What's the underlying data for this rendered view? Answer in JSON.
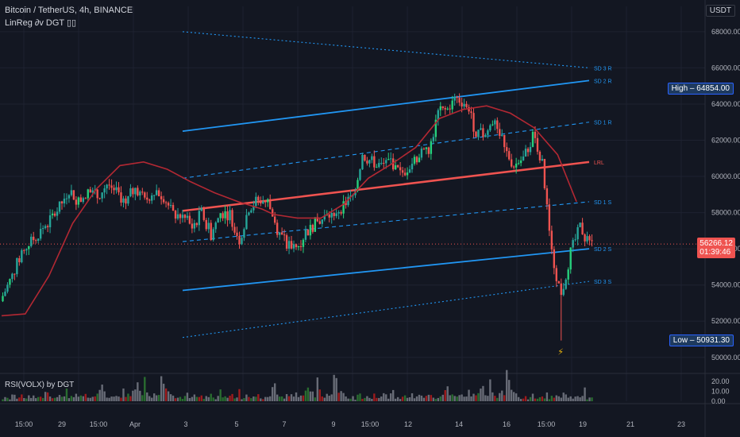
{
  "header": {
    "symbol": "Bitcoin / TetherUS, 4h, BINANCE",
    "indicator": "LinReg ∂v DGT ▯▯",
    "currency": "USDT"
  },
  "volume_panel": {
    "title": "RSI(VOLX) by DGT"
  },
  "price_axis": {
    "ticks": [
      "68000.00",
      "66000.00",
      "64000.00",
      "62000.00",
      "60000.00",
      "58000.00",
      "56000.00",
      "54000.00",
      "52000.00",
      "50000.00"
    ],
    "tick_values": [
      68000,
      66000,
      64000,
      62000,
      60000,
      58000,
      56000,
      54000,
      52000,
      50000
    ],
    "range": [
      49200,
      69400
    ]
  },
  "volume_axis": {
    "ticks": [
      "20.00",
      "10.00",
      "0.00"
    ],
    "tick_values": [
      20,
      10,
      0
    ],
    "range": [
      0,
      28
    ]
  },
  "time_axis": {
    "labels": [
      "15:00",
      "29",
      "15:00",
      "Apr",
      "3",
      "5",
      "7",
      "9",
      "15:00",
      "12",
      "14",
      "16",
      "15:00",
      "19",
      "21",
      "23"
    ]
  },
  "high_tag": {
    "label": "High",
    "value": "64854.00",
    "price": 64854
  },
  "low_tag": {
    "label": "Low",
    "value": "50931.30",
    "price": 50931
  },
  "current_price": {
    "value": "56266.12",
    "countdown": "01:39:46",
    "price": 56266
  },
  "regression_bands": {
    "labels": [
      "SD 3 R",
      "SD 2 R",
      "SD 1 R",
      "LRL",
      "SD 1 S",
      "SD 2 S",
      "SD 3 S"
    ],
    "start": [
      68000,
      62500,
      59900,
      58100,
      56400,
      53700,
      51100
    ],
    "end": [
      66000,
      65300,
      63000,
      60800,
      58600,
      56000,
      54200
    ],
    "colors": [
      "#2196f3",
      "#2196f3",
      "#2196f3",
      "#ef5350",
      "#2196f3",
      "#2196f3",
      "#2196f3"
    ],
    "styles": [
      "dotted",
      "solid",
      "dashed",
      "solid",
      "dashed",
      "solid",
      "dotted"
    ]
  },
  "colors": {
    "background": "#131722",
    "up": "#26a69a",
    "down": "#ef5350",
    "up_bright": "#26d07c",
    "volume_up": "#2e7d32",
    "volume_down": "#b71c1c",
    "volume_neutral": "#787b86",
    "ma": "#b22833",
    "grid": "#1e2230",
    "text_muted": "#787b86",
    "lightning": "#f0b90b"
  },
  "chart_data": {
    "type": "candlestick",
    "title": "Bitcoin / TetherUS, 4h, BINANCE",
    "unit": "USDT",
    "close_path_keypoints": [
      [
        0,
        53400
      ],
      [
        4,
        54500
      ],
      [
        8,
        55800
      ],
      [
        12,
        56400
      ],
      [
        16,
        57000
      ],
      [
        20,
        57600
      ],
      [
        24,
        58300
      ],
      [
        28,
        59300
      ],
      [
        32,
        58600
      ],
      [
        36,
        59200
      ],
      [
        40,
        58900
      ],
      [
        44,
        59600
      ],
      [
        48,
        59200
      ],
      [
        52,
        58500
      ],
      [
        56,
        59500
      ],
      [
        60,
        58600
      ],
      [
        64,
        59300
      ],
      [
        68,
        58900
      ],
      [
        72,
        57900
      ],
      [
        76,
        57800
      ],
      [
        80,
        57200
      ],
      [
        84,
        58000
      ],
      [
        88,
        56800
      ],
      [
        92,
        58000
      ],
      [
        96,
        57900
      ],
      [
        100,
        56500
      ],
      [
        104,
        58300
      ],
      [
        108,
        58700
      ],
      [
        112,
        58600
      ],
      [
        116,
        57100
      ],
      [
        120,
        56200
      ],
      [
        124,
        56000
      ],
      [
        128,
        56900
      ],
      [
        132,
        57400
      ],
      [
        136,
        57700
      ],
      [
        140,
        58000
      ],
      [
        144,
        58400
      ],
      [
        148,
        58900
      ],
      [
        152,
        61200
      ],
      [
        156,
        60800
      ],
      [
        160,
        60600
      ],
      [
        164,
        60900
      ],
      [
        168,
        60100
      ],
      [
        172,
        60600
      ],
      [
        176,
        61200
      ],
      [
        180,
        61300
      ],
      [
        184,
        63500
      ],
      [
        188,
        63700
      ],
      [
        192,
        64300
      ],
      [
        196,
        64000
      ],
      [
        200,
        62400
      ],
      [
        204,
        62300
      ],
      [
        208,
        63300
      ],
      [
        212,
        61500
      ],
      [
        216,
        60600
      ],
      [
        220,
        61000
      ],
      [
        224,
        62200
      ],
      [
        228,
        60700
      ],
      [
        232,
        55700
      ],
      [
        236,
        53400
      ],
      [
        240,
        55800
      ],
      [
        244,
        57200
      ],
      [
        248,
        56300
      ]
    ],
    "moving_average": [
      [
        0,
        52300
      ],
      [
        10,
        52400
      ],
      [
        20,
        54500
      ],
      [
        30,
        57400
      ],
      [
        40,
        59300
      ],
      [
        50,
        60600
      ],
      [
        60,
        60800
      ],
      [
        70,
        60400
      ],
      [
        80,
        59700
      ],
      [
        90,
        59100
      ],
      [
        100,
        58600
      ],
      [
        110,
        58200
      ],
      [
        115,
        57900
      ],
      [
        125,
        57700
      ],
      [
        135,
        57700
      ],
      [
        145,
        58500
      ],
      [
        155,
        59900
      ],
      [
        165,
        60700
      ],
      [
        175,
        61600
      ],
      [
        185,
        63200
      ],
      [
        195,
        63700
      ],
      [
        205,
        63900
      ],
      [
        215,
        63500
      ],
      [
        225,
        62700
      ],
      [
        235,
        61200
      ],
      [
        243,
        58600
      ]
    ],
    "volume_sample": [
      3,
      4,
      5,
      2,
      6,
      8,
      3,
      4,
      6,
      5,
      4,
      9,
      3,
      5,
      4,
      7,
      6,
      3,
      8,
      10,
      4,
      5,
      3,
      6,
      7,
      4,
      5,
      12,
      3,
      5,
      6,
      7,
      4,
      5,
      6,
      9,
      4,
      3,
      5,
      7,
      8,
      12,
      22,
      9,
      6,
      5,
      4,
      7,
      8,
      6,
      5,
      14,
      6,
      8,
      5,
      9,
      12,
      16,
      9,
      6,
      24,
      10,
      8,
      5,
      7,
      9,
      6,
      28,
      26,
      12,
      10,
      8,
      6
    ],
    "spike_low_index": 236,
    "spike_low_value": 50931,
    "ylim": [
      49200,
      69400
    ]
  }
}
